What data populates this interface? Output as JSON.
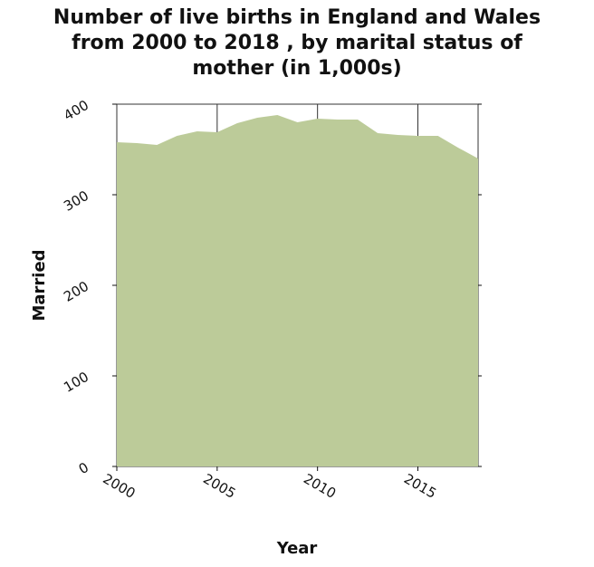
{
  "chart_data": {
    "type": "area",
    "title": "Number of live births in England and Wales\nfrom 2000 to 2018 , by marital status of\nmother (in 1,000s)",
    "xlabel": "Year",
    "ylabel": "Married",
    "xlim": [
      2000,
      2018
    ],
    "ylim": [
      0,
      400
    ],
    "x_ticks": [
      2000,
      2005,
      2010,
      2015
    ],
    "y_ticks": [
      0,
      100,
      200,
      300,
      400
    ],
    "grid": true,
    "legend": "none",
    "colors": {
      "area": "#bccb99",
      "grid": "#333333"
    },
    "x": [
      2000,
      2001,
      2002,
      2003,
      2004,
      2005,
      2006,
      2007,
      2008,
      2009,
      2010,
      2011,
      2012,
      2013,
      2014,
      2015,
      2016,
      2017,
      2018
    ],
    "values": [
      358,
      357,
      355,
      365,
      370,
      369,
      379,
      385,
      388,
      380,
      384,
      383,
      383,
      368,
      366,
      365,
      365,
      352,
      340
    ]
  }
}
